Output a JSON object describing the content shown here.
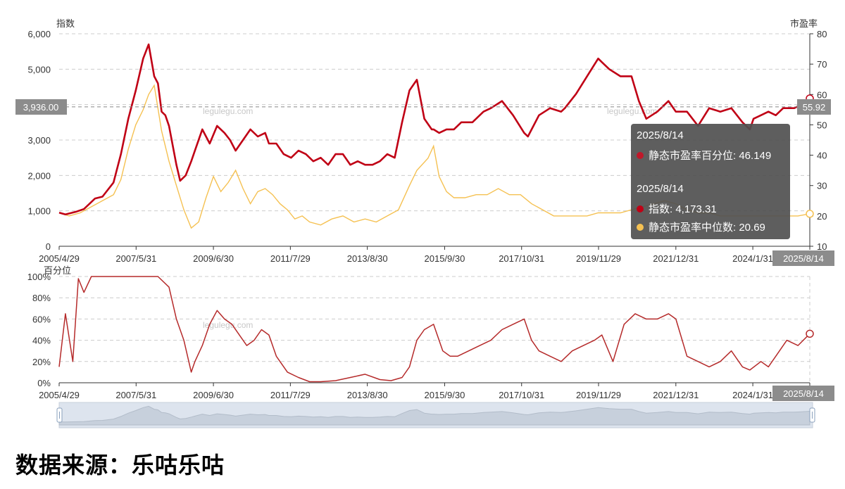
{
  "watermark": "legulegu.com",
  "source_text": "数据来源：乐咕乐咕",
  "colors": {
    "index_line": "#c00015",
    "median_pe_line": "#f5c152",
    "percentile_line": "#b52a2a",
    "badge_bg": "#8c8c8c",
    "tooltip_bg": "#505050",
    "navigator_bg": "#dde4ee"
  },
  "top_chart": {
    "left_axis_title": "指数",
    "right_axis_title": "市盈率",
    "crosshair": {
      "left_value_label": "3,936.00",
      "right_value_label": "55.92"
    },
    "x_badge": "2025/8/14"
  },
  "bottom_chart": {
    "axis_title": "百分位",
    "x_badge": "2025/8/14"
  },
  "tooltip": {
    "date1": "2025/8/14",
    "row1": {
      "label": "静态市盈率百分位",
      "value": "46.149",
      "text": "静态市盈率百分位: 46.149"
    },
    "date2": "2025/8/14",
    "row2": {
      "label": "指数",
      "value": "4,173.31",
      "text": "指数: 4,173.31"
    },
    "row3": {
      "label": "静态市盈率中位数",
      "value": "20.69",
      "text": "静态市盈率中位数: 20.69"
    }
  },
  "chart_data": [
    {
      "type": "line",
      "yaxis_left": {
        "title": "指数",
        "ylim": [
          0,
          6000
        ],
        "ticks": [
          "0",
          "1,000",
          "2,000",
          "3,000",
          "4,000",
          "5,000",
          "6,000"
        ]
      },
      "yaxis_right": {
        "title": "市盈率",
        "ylim": [
          10,
          80
        ],
        "ticks": [
          "10",
          "20",
          "30",
          "40",
          "50",
          "60",
          "70",
          "80"
        ]
      },
      "x_range": [
        "2005/4/29",
        "2025/8/14"
      ],
      "x_tick_labels": [
        "2005/4/29",
        "2007/5/31",
        "2009/6/30",
        "2011/7/29",
        "2013/8/30",
        "2015/9/30",
        "2017/10/31",
        "2019/11/29",
        "2021/12/31",
        "2024/1/31",
        "2025/8/14"
      ],
      "grid": true,
      "series": [
        {
          "name": "指数",
          "axis": "left",
          "x": [
            2005.33,
            2005.5,
            2005.8,
            2006.0,
            2006.3,
            2006.5,
            2006.8,
            2007.0,
            2007.2,
            2007.4,
            2007.6,
            2007.75,
            2007.9,
            2008.0,
            2008.1,
            2008.2,
            2008.3,
            2008.5,
            2008.6,
            2008.75,
            2008.9,
            2009.0,
            2009.2,
            2009.4,
            2009.6,
            2009.8,
            2009.95,
            2010.1,
            2010.3,
            2010.5,
            2010.7,
            2010.9,
            2011.0,
            2011.2,
            2011.4,
            2011.6,
            2011.8,
            2012.0,
            2012.2,
            2012.4,
            2012.6,
            2012.8,
            2013.0,
            2013.2,
            2013.4,
            2013.6,
            2013.8,
            2014.0,
            2014.2,
            2014.4,
            2014.6,
            2014.8,
            2015.0,
            2015.2,
            2015.4,
            2015.45,
            2015.6,
            2015.8,
            2016.0,
            2016.2,
            2016.5,
            2016.8,
            2017.0,
            2017.3,
            2017.6,
            2017.9,
            2018.0,
            2018.3,
            2018.6,
            2018.9,
            2019.0,
            2019.3,
            2019.6,
            2019.9,
            2020.0,
            2020.2,
            2020.5,
            2020.8,
            2021.0,
            2021.2,
            2021.5,
            2021.8,
            2022.0,
            2022.3,
            2022.6,
            2022.9,
            2023.2,
            2023.5,
            2023.8,
            2024.0,
            2024.1,
            2024.3,
            2024.5,
            2024.7,
            2024.9,
            2025.2,
            2025.4,
            2025.62
          ],
          "y": [
            950,
            900,
            980,
            1050,
            1350,
            1400,
            1800,
            2600,
            3600,
            4400,
            5300,
            5700,
            4800,
            4600,
            3800,
            3700,
            3400,
            2300,
            1850,
            2000,
            2400,
            2700,
            3300,
            2900,
            3400,
            3200,
            3000,
            2700,
            3000,
            3300,
            3100,
            3200,
            2900,
            2900,
            2600,
            2500,
            2700,
            2600,
            2400,
            2500,
            2300,
            2600,
            2600,
            2300,
            2400,
            2300,
            2300,
            2400,
            2600,
            2500,
            3500,
            4400,
            4700,
            3600,
            3300,
            3300,
            3200,
            3300,
            3300,
            3500,
            3500,
            3800,
            3900,
            4100,
            3700,
            3200,
            3100,
            3700,
            3900,
            3800,
            3900,
            4300,
            4800,
            5300,
            5200,
            5000,
            4800,
            4800,
            4100,
            3600,
            3800,
            4100,
            3800,
            3800,
            3400,
            3900,
            3800,
            3900,
            3500,
            3300,
            3600,
            3700,
            3800,
            3700,
            3900,
            3900,
            4000,
            4173.31
          ]
        },
        {
          "name": "静态市盈率中位数",
          "axis": "right",
          "x": [
            2005.33,
            2005.6,
            2005.9,
            2006.2,
            2006.5,
            2006.8,
            2007.0,
            2007.2,
            2007.4,
            2007.6,
            2007.75,
            2007.9,
            2008.1,
            2008.3,
            2008.5,
            2008.7,
            2008.9,
            2009.1,
            2009.3,
            2009.5,
            2009.7,
            2009.9,
            2010.1,
            2010.3,
            2010.5,
            2010.7,
            2010.9,
            2011.1,
            2011.3,
            2011.5,
            2011.7,
            2011.9,
            2012.1,
            2012.4,
            2012.7,
            2013.0,
            2013.3,
            2013.6,
            2013.9,
            2014.2,
            2014.5,
            2014.8,
            2015.0,
            2015.3,
            2015.45,
            2015.6,
            2015.8,
            2016.0,
            2016.3,
            2016.6,
            2016.9,
            2017.2,
            2017.5,
            2017.8,
            2018.1,
            2018.4,
            2018.7,
            2019.0,
            2019.3,
            2019.6,
            2019.9,
            2020.2,
            2020.5,
            2020.8,
            2021.1,
            2021.4,
            2021.7,
            2022.0,
            2022.3,
            2022.6,
            2022.9,
            2023.2,
            2023.5,
            2023.8,
            2024.1,
            2024.4,
            2024.7,
            2025.0,
            2025.3,
            2025.62
          ],
          "y": [
            21,
            20,
            21,
            23,
            25,
            27,
            32,
            42,
            50,
            55,
            60,
            63,
            48,
            38,
            30,
            22,
            16,
            18,
            26,
            33,
            28,
            31,
            35,
            29,
            24,
            28,
            29,
            27,
            24,
            22,
            19,
            20,
            18,
            17,
            19,
            20,
            18,
            19,
            18,
            20,
            22,
            30,
            35,
            39,
            43,
            33,
            28,
            26,
            26,
            27,
            27,
            29,
            27,
            27,
            24,
            22,
            20,
            20,
            20,
            20,
            21,
            21,
            21,
            22,
            23,
            24,
            25,
            24,
            22,
            21,
            21,
            20,
            20,
            20,
            20,
            20,
            20,
            20,
            20,
            20.69
          ]
        }
      ]
    },
    {
      "type": "line",
      "yaxis": {
        "title": "百分位",
        "ylim": [
          0,
          100
        ],
        "ticks": [
          "0%",
          "20%",
          "40%",
          "60%",
          "80%",
          "100%"
        ]
      },
      "x_range": [
        "2005/4/29",
        "2025/8/14"
      ],
      "x_tick_labels": [
        "2005/4/29",
        "2007/5/31",
        "2009/6/30",
        "2011/7/29",
        "2013/8/30",
        "2015/9/30",
        "2017/10/31",
        "2019/11/29",
        "2021/12/31",
        "2024/1/31",
        "2025/8/14"
      ],
      "grid": true,
      "series": [
        {
          "name": "静态市盈率百分位",
          "x": [
            2005.33,
            2005.5,
            2005.7,
            2005.85,
            2006.0,
            2006.2,
            2006.4,
            2006.6,
            2006.8,
            2007.0,
            2007.5,
            2008.0,
            2008.3,
            2008.5,
            2008.7,
            2008.9,
            2009.0,
            2009.2,
            2009.4,
            2009.6,
            2009.8,
            2010.0,
            2010.2,
            2010.4,
            2010.6,
            2010.8,
            2011.0,
            2011.2,
            2011.5,
            2011.8,
            2012.1,
            2012.4,
            2012.8,
            2013.2,
            2013.6,
            2014.0,
            2014.3,
            2014.6,
            2014.8,
            2015.0,
            2015.2,
            2015.45,
            2015.7,
            2015.9,
            2016.1,
            2016.4,
            2016.7,
            2017.0,
            2017.3,
            2017.6,
            2017.9,
            2018.1,
            2018.3,
            2018.6,
            2018.9,
            2019.2,
            2019.5,
            2019.8,
            2020.0,
            2020.3,
            2020.6,
            2020.9,
            2021.2,
            2021.5,
            2021.8,
            2022.0,
            2022.3,
            2022.6,
            2022.9,
            2023.2,
            2023.5,
            2023.8,
            2024.0,
            2024.3,
            2024.5,
            2024.7,
            2025.0,
            2025.3,
            2025.62
          ],
          "y": [
            15,
            65,
            20,
            98,
            85,
            100,
            100,
            100,
            100,
            100,
            100,
            100,
            90,
            60,
            40,
            10,
            20,
            35,
            55,
            68,
            60,
            55,
            45,
            35,
            40,
            50,
            45,
            25,
            10,
            5,
            1,
            1,
            2,
            5,
            8,
            3,
            2,
            5,
            15,
            40,
            50,
            55,
            30,
            25,
            25,
            30,
            35,
            40,
            50,
            55,
            60,
            40,
            30,
            25,
            20,
            30,
            35,
            40,
            45,
            20,
            55,
            65,
            60,
            60,
            65,
            60,
            25,
            20,
            15,
            20,
            30,
            15,
            12,
            20,
            15,
            25,
            40,
            35,
            46.149
          ]
        }
      ]
    }
  ]
}
